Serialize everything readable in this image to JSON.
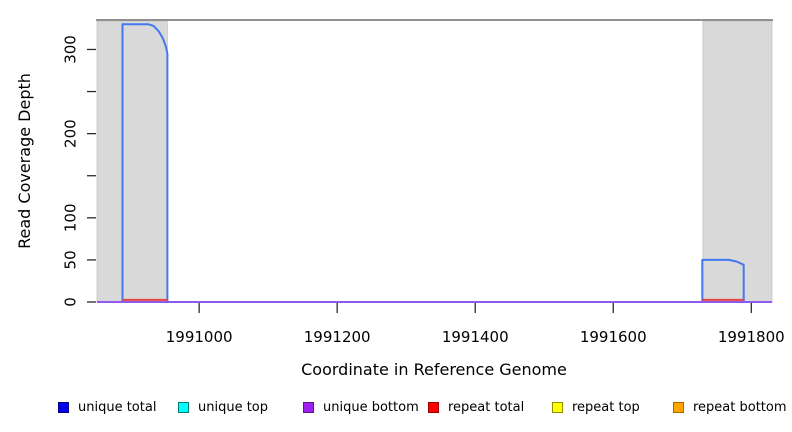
{
  "figure": {
    "background": "#ffffff"
  },
  "chart_data": {
    "type": "line",
    "title": "",
    "xlabel": "Coordinate in Reference Genome",
    "ylabel": "Read Coverage Depth",
    "xlim": [
      1990852,
      1991830
    ],
    "ylim": [
      0,
      335
    ],
    "x_ticks": [
      1991000,
      1991200,
      1991400,
      1991600,
      1991800
    ],
    "x_tick_labels": [
      "1991000",
      "1991200",
      "1991400",
      "1991600",
      "1991800"
    ],
    "y_ticks": [
      0,
      50,
      100,
      150,
      200,
      250,
      300
    ],
    "y_tick_labels": [
      "0",
      "50",
      "100",
      "",
      "200",
      "",
      "300"
    ],
    "grid": false,
    "legend_position": "bottom",
    "top_boundary_value": 335,
    "top_boundary_color": "#909090",
    "region_color": "#d9d9d9",
    "region_border_color": "#c2c2c2",
    "tick_color": "#2a2a2a",
    "repeat_regions": [
      {
        "label": "left-repeat-region",
        "from": 1990852,
        "to": 1990954
      },
      {
        "label": "right-repeat-region",
        "from": 1991730,
        "to": 1991830
      }
    ],
    "series": [
      {
        "name": "unique total",
        "color": "#4478f0",
        "segments": [
          [
            [
              1990852,
              0
            ],
            [
              1990889,
              0
            ],
            [
              1990889,
              330
            ],
            [
              1990926,
              330
            ],
            [
              1990934,
              328
            ],
            [
              1990941,
              322
            ],
            [
              1990947,
              314
            ],
            [
              1990952,
              303
            ],
            [
              1990954,
              295
            ],
            [
              1990954,
              0
            ],
            [
              1991729,
              0
            ],
            [
              1991729,
              50
            ],
            [
              1991768,
              50
            ],
            [
              1991779,
              48
            ],
            [
              1991787,
              45
            ],
            [
              1991789,
              44
            ],
            [
              1991789,
              0
            ],
            [
              1991830,
              0
            ]
          ]
        ]
      },
      {
        "name": "repeat total",
        "color": "#e8433c",
        "segments": [
          [
            [
              1990889,
              2.5
            ],
            [
              1990954,
              2.5
            ]
          ],
          [
            [
              1991729,
              2.5
            ],
            [
              1991789,
              2.5
            ]
          ]
        ]
      },
      {
        "name": "unique bottom",
        "color": "#9059ee",
        "segments": [
          [
            [
              1990852,
              0
            ],
            [
              1991830,
              0
            ]
          ]
        ]
      }
    ]
  },
  "legend": {
    "items": [
      {
        "label": "unique total",
        "fill": "#0000ee",
        "border": "#000080"
      },
      {
        "label": "unique top",
        "fill": "#00ffff",
        "border": "#007878"
      },
      {
        "label": "unique bottom",
        "fill": "#a020f0",
        "border": "#551a8b"
      },
      {
        "label": "repeat total",
        "fill": "#ff0000",
        "border": "#990000"
      },
      {
        "label": "repeat top",
        "fill": "#ffff00",
        "border": "#8f8f00"
      },
      {
        "label": "repeat bottom",
        "fill": "#ffa500",
        "border": "#a86500"
      }
    ]
  }
}
